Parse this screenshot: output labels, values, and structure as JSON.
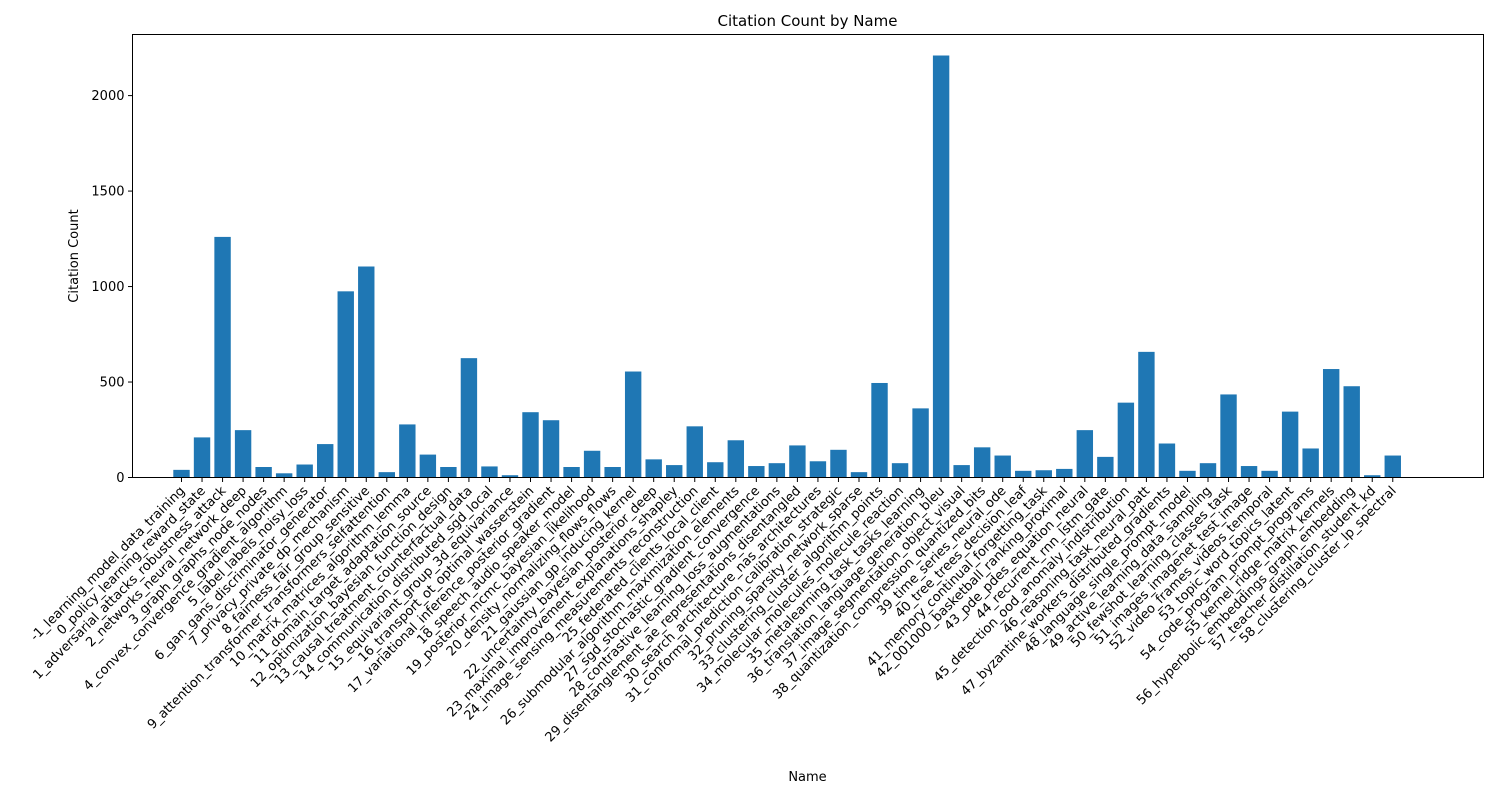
{
  "chart_data": {
    "type": "bar",
    "title": "Citation Count by Name",
    "xlabel": "Name",
    "ylabel": "Citation Count",
    "ylim": [
      0,
      2320
    ],
    "yticks": [
      0,
      500,
      1000,
      1500,
      2000
    ],
    "grid": false,
    "bar_color": "#1f77b4",
    "categories": [
      "-1_learning_model_data_training",
      "0_policy_learning_reward_state",
      "1_adversarial_attacks_robustness_attack",
      "2_networks_neural_network_deep",
      "3_graph_graphs_node_nodes",
      "4_convex_convergence_gradient_algorithm",
      "5_label_labels_noisy_loss",
      "6_gan_gans_discriminator_generator",
      "7_privacy_private_dp_mechanism",
      "8_fairness_fair_group_sensitive",
      "9_attention_transformer_transformers_selfattention",
      "10_matrix_matrices_algorithm_lemma",
      "11_domain_target_adaptation_source",
      "12_optimization_bayesian_function_design",
      "13_causal_treatment_counterfactual_data",
      "14_communication_distributed_sgd_local",
      "15_equivariant_group_3d_equivariance",
      "16_transport_ot_optimal_wasserstein",
      "17_variational_inference_posterior_gradient",
      "18_speech_audio_speaker_model",
      "19_posterior_mcmc_bayesian_likelihood",
      "20_density_normalizing_flows_flows",
      "21_gaussian_gp_inducing_kernel",
      "22_uncertainty_bayesian_posterior_deep",
      "23_maximal_improvement_explanations_shapley",
      "24_image_sensing_measurements_reconstruction",
      "25_federated_clients_local_client",
      "26_submodular_algorithm_maximization_elements",
      "27_sgd_stochastic_gradient_convergence",
      "28_contrastive_learning_loss_augmentations",
      "29_disentanglement_ae_representations_disentangled",
      "30_search_architecture_nas_architectures",
      "31_conformal_prediction_calibration_strategic",
      "32_pruning_sparsity_network_sparse",
      "33_clustering_cluster_algorithm_points",
      "34_molecular_molecules_molecule_reaction",
      "35_metalearning_task_tasks_learning",
      "36_translation_language_generation_bleu",
      "37_image_segmentation_object_visual",
      "38_quantization_compression_quantized_bits",
      "39_time_series_neural_ode",
      "40_tree_trees_decision_leaf",
      "41_memory_continual_forgetting_task",
      "42_001000_basketball_ranking_proximal",
      "43_pde_pdes_equation_neural",
      "44_recurrent_rnn_lstm_gate",
      "45_detection_ood_anomaly_indistribution",
      "46_reasoning_task_neural_patt",
      "47_byzantine_workers_distributed_gradients",
      "48_language_single_prompt_model",
      "49_active_learning_data_sampling",
      "50_fewshot_learning_classes_task",
      "51_images_imagenet_test_image",
      "52_video_frames_videos_temporal",
      "53_topic_word_topics_latent",
      "54_code_program_prompt_programs",
      "55_kernel_ridge_matrix_kernels",
      "56_hyperbolic_embeddings_graph_embedding",
      "57_teacher_distillation_student_kd",
      "58_clustering_cluster_lp_spectral"
    ],
    "values": [
      40,
      210,
      1260,
      248,
      55,
      22,
      68,
      175,
      975,
      1105,
      28,
      278,
      120,
      55,
      625,
      58,
      12,
      342,
      300,
      55,
      140,
      55,
      555,
      95,
      65,
      268,
      80,
      195,
      60,
      75,
      168,
      85,
      145,
      28,
      495,
      75,
      362,
      2210,
      65,
      158,
      115,
      35,
      38,
      45,
      248,
      108,
      392,
      658,
      178,
      35,
      75,
      435,
      60,
      35,
      345,
      152,
      568,
      478,
      12,
      115
    ]
  }
}
